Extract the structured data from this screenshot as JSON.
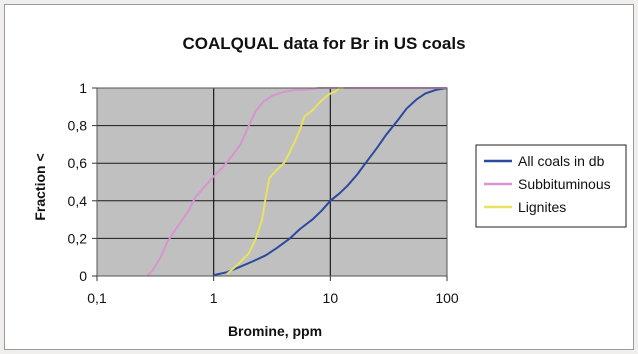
{
  "chart_data": {
    "type": "line",
    "title": "COALQUAL data for Br in US coals",
    "xlabel": "Bromine, ppm",
    "ylabel": "Fraction <",
    "xscale": "log",
    "xlim": [
      0.1,
      100
    ],
    "ylim": [
      0,
      1
    ],
    "x_ticks": [
      0.1,
      1,
      10,
      100
    ],
    "x_tick_labels": [
      "0,1",
      "1",
      "10",
      "100"
    ],
    "y_ticks": [
      0,
      0.2,
      0.4,
      0.6,
      0.8,
      1
    ],
    "y_tick_labels": [
      "0",
      "0,2",
      "0,4",
      "0,6",
      "0,8",
      "1"
    ],
    "grid": "horizontal and major vertical",
    "plot_background": "#c0c0c0",
    "legend_position": "right",
    "series": [
      {
        "name": "All coals in db",
        "color": "#2b4a9e",
        "x": [
          1.0,
          1.3,
          1.7,
          2.2,
          2.8,
          3.5,
          4.5,
          5.5,
          7.0,
          8.5,
          10,
          12,
          14,
          17,
          20,
          25,
          30,
          38,
          45,
          55,
          65,
          80,
          100
        ],
        "y": [
          0.005,
          0.02,
          0.05,
          0.08,
          0.11,
          0.15,
          0.2,
          0.25,
          0.3,
          0.35,
          0.4,
          0.44,
          0.48,
          0.54,
          0.6,
          0.68,
          0.75,
          0.83,
          0.89,
          0.94,
          0.97,
          0.99,
          1.0
        ]
      },
      {
        "name": "Subbituminous",
        "color": "#d795d0",
        "x": [
          0.27,
          0.3,
          0.35,
          0.4,
          0.5,
          0.6,
          0.7,
          0.85,
          1.0,
          1.2,
          1.4,
          1.7,
          2.0,
          2.3,
          2.7,
          3.2,
          4.0,
          5.0,
          6.0,
          8.0,
          10,
          15,
          20,
          30,
          50,
          100
        ],
        "y": [
          0.0,
          0.03,
          0.1,
          0.18,
          0.27,
          0.34,
          0.42,
          0.48,
          0.53,
          0.58,
          0.63,
          0.7,
          0.8,
          0.88,
          0.93,
          0.96,
          0.98,
          0.99,
          0.99,
          1.0,
          1.0,
          1.0,
          1.0,
          1.0,
          1.0,
          1.0
        ]
      },
      {
        "name": "Lignites",
        "color": "#e8e260",
        "x": [
          1.3,
          1.6,
          2.0,
          2.3,
          2.6,
          2.8,
          3.0,
          3.4,
          4.0,
          4.5,
          5.0,
          5.5,
          6.0,
          7.0,
          8.0,
          9.0,
          10,
          11,
          12,
          13
        ],
        "y": [
          0.01,
          0.06,
          0.12,
          0.2,
          0.3,
          0.42,
          0.52,
          0.56,
          0.6,
          0.66,
          0.72,
          0.78,
          0.85,
          0.88,
          0.92,
          0.95,
          0.97,
          0.98,
          1.0,
          1.0
        ]
      }
    ]
  }
}
